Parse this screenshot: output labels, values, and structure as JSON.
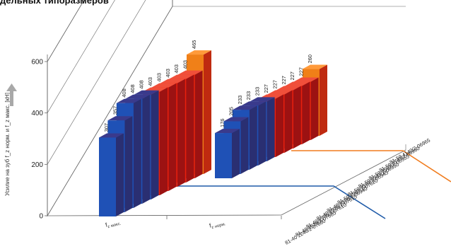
{
  "title": "дельных типоразмеров",
  "chart_data": {
    "type": "bar",
    "title": "дельных типоразмеров",
    "ylabel": "Усилие на зуб f_z норм. и f_z макс. [кН]",
    "ylim": [
      0,
      600
    ],
    "yticks": [
      "0",
      "200",
      "400",
      "600"
    ],
    "categories": [
      "f_z макс.",
      "f_z норм."
    ],
    "category_labels": [
      {
        "base": "f",
        "sub": "z макс."
      },
      {
        "base": "f",
        "sub": "z норм."
      }
    ],
    "series": [
      {
        "name": "81-40 2240/2-07600",
        "values": [
          307,
          176
        ]
      },
      {
        "name": "81-40 2619/2-07605",
        "values": [
          357,
          205
        ]
      },
      {
        "name": "81-40 2795/2-07610",
        "values": [
          408,
          233
        ]
      },
      {
        "name": "81-40 2915/2-07615",
        "values": [
          408,
          233
        ]
      },
      {
        "name": "81-40 3150/2-06940",
        "values": [
          408,
          233
        ]
      },
      {
        "name": "81-50 2987/2-07620",
        "values": [
          403,
          227
        ]
      },
      {
        "name": "81-50 3167/2-06945",
        "values": [
          403,
          227
        ]
      },
      {
        "name": "81-50 3347/2-06950",
        "values": [
          403,
          227
        ]
      },
      {
        "name": "81-50 3567/2-06955",
        "values": [
          403,
          227
        ]
      },
      {
        "name": "81-50 3747/2-06960",
        "values": [
          403,
          227
        ]
      },
      {
        "name": "81-50 4140/2-06965",
        "values": [
          465,
          260
        ]
      }
    ],
    "colors": {
      "blue_front": "#1f51b6",
      "blue_side": "#2a2f72",
      "blue_top": "#3a3a8c",
      "red_front": "#e8200e",
      "red_side": "#9c1212",
      "red_top": "#f04f3a",
      "orange_front": "#f08018",
      "orange_side": "#bf2a10",
      "orange_top": "#ff9a3a",
      "blue_group_line": "#1e5aa8",
      "orange_group_line": "#f07c1e",
      "grid": "#666666"
    },
    "grid": true,
    "arrow_color": "#a8a8a8"
  }
}
